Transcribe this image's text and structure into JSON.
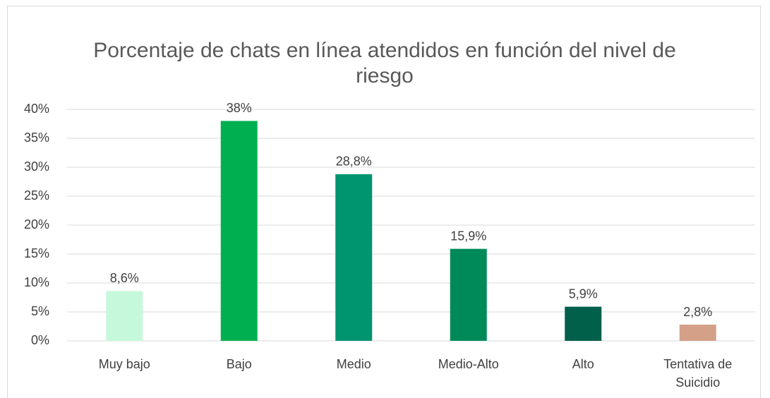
{
  "chart_data": {
    "type": "bar",
    "title": "Porcentaje de chats en línea atendidos en función del nivel de riesgo",
    "categories": [
      "Muy bajo",
      "Bajo",
      "Medio",
      "Medio-Alto",
      "Alto",
      "Tentativa de Suicidio"
    ],
    "values": [
      8.6,
      38,
      28.8,
      15.9,
      5.9,
      2.8
    ],
    "value_labels": [
      "8,6%",
      "38%",
      "28,8%",
      "15,9%",
      "5,9%",
      "2,8%"
    ],
    "colors": [
      "#c6f9dc",
      "#00b050",
      "#00956e",
      "#008a5a",
      "#00604a",
      "#d4a088"
    ],
    "ylim": [
      0,
      40
    ],
    "yticks": [
      {
        "value": 0,
        "label": "0%"
      },
      {
        "value": 5,
        "label": "5%"
      },
      {
        "value": 10,
        "label": "10%"
      },
      {
        "value": 15,
        "label": "15%"
      },
      {
        "value": 20,
        "label": "20%"
      },
      {
        "value": 25,
        "label": "25%"
      },
      {
        "value": 30,
        "label": "30%"
      },
      {
        "value": 35,
        "label": "35%"
      },
      {
        "value": 40,
        "label": "40%"
      }
    ],
    "grid": true
  }
}
